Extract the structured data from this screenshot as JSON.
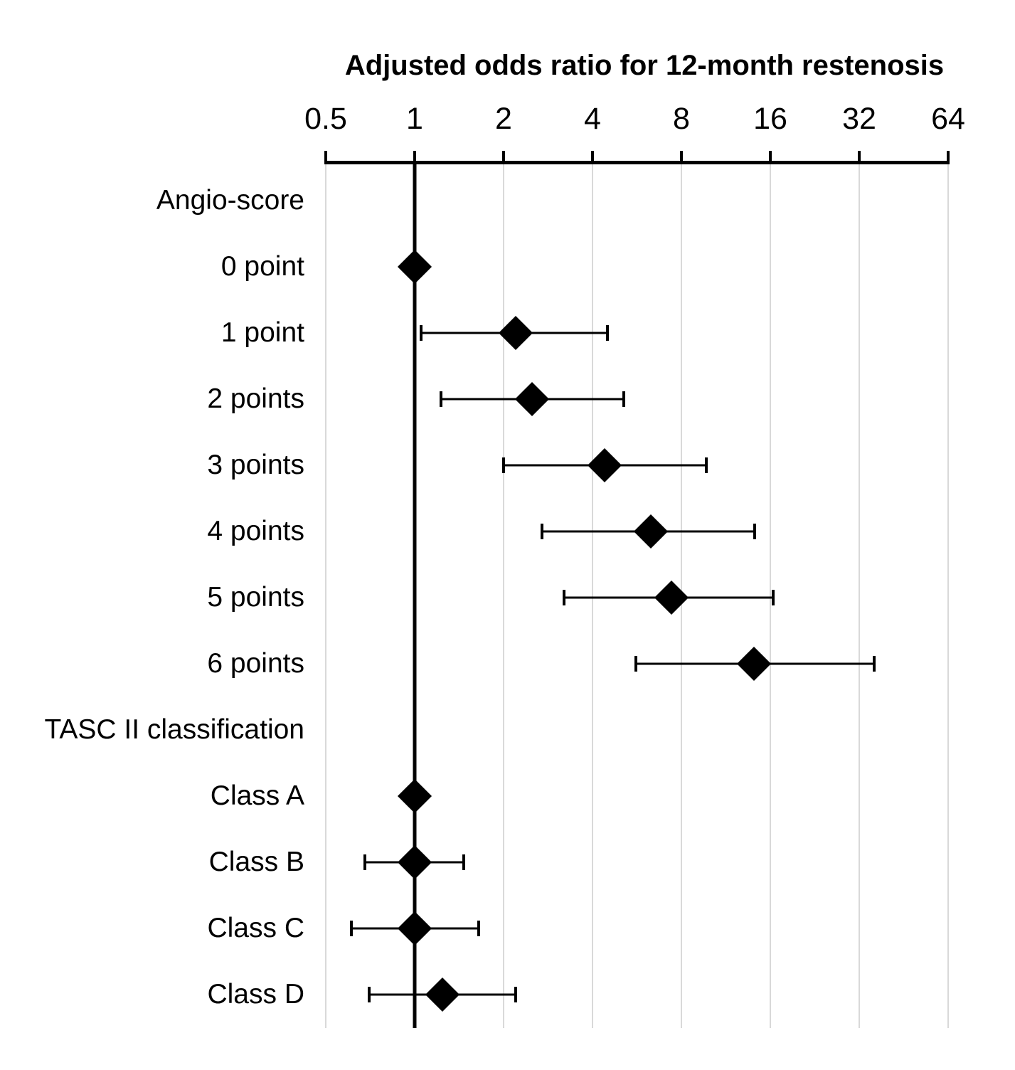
{
  "chart_data": {
    "type": "scatter",
    "subtype": "forest-plot",
    "title": "Adjusted odds ratio for 12-month restenosis",
    "xlabel": "Adjusted odds ratio for 12-month restenosis",
    "ylabel": "",
    "x_scale": "log2",
    "xlim": [
      0.5,
      64
    ],
    "x_ticks": [
      {
        "label": "0.5",
        "value": 0.5
      },
      {
        "label": "1",
        "value": 1
      },
      {
        "label": "2",
        "value": 2
      },
      {
        "label": "4",
        "value": 4
      },
      {
        "label": "8",
        "value": 8
      },
      {
        "label": "16",
        "value": 16
      },
      {
        "label": "32",
        "value": 32
      },
      {
        "label": "64",
        "value": 64
      }
    ],
    "reference_line": 1,
    "grid": "vertical-light",
    "legend": "none",
    "rows": [
      {
        "label": "Angio-score",
        "header": true
      },
      {
        "label": "0 point",
        "or": 1.0,
        "reference": true
      },
      {
        "label": "1 point",
        "or": 2.2,
        "ci_low": 1.05,
        "ci_high": 4.5
      },
      {
        "label": "2 points",
        "or": 2.5,
        "ci_low": 1.23,
        "ci_high": 5.1
      },
      {
        "label": "3 points",
        "or": 4.4,
        "ci_low": 2.0,
        "ci_high": 9.7
      },
      {
        "label": "4 points",
        "or": 6.3,
        "ci_low": 2.7,
        "ci_high": 14.2
      },
      {
        "label": "5 points",
        "or": 7.4,
        "ci_low": 3.2,
        "ci_high": 16.4
      },
      {
        "label": "6 points",
        "or": 14.1,
        "ci_low": 5.6,
        "ci_high": 36.0
      },
      {
        "label": "TASC II classification",
        "header": true
      },
      {
        "label": "Class A",
        "or": 1.0,
        "reference": true
      },
      {
        "label": "Class B",
        "or": 1.0,
        "ci_low": 0.68,
        "ci_high": 1.47
      },
      {
        "label": "Class C",
        "or": 1.0,
        "ci_low": 0.61,
        "ci_high": 1.65
      },
      {
        "label": "Class D",
        "or": 1.24,
        "ci_low": 0.7,
        "ci_high": 2.2
      }
    ],
    "colors": {
      "marker": "#000000",
      "ci": "#000000",
      "axis": "#000000",
      "gridline": "#d9d9d9",
      "background": "#ffffff"
    }
  }
}
